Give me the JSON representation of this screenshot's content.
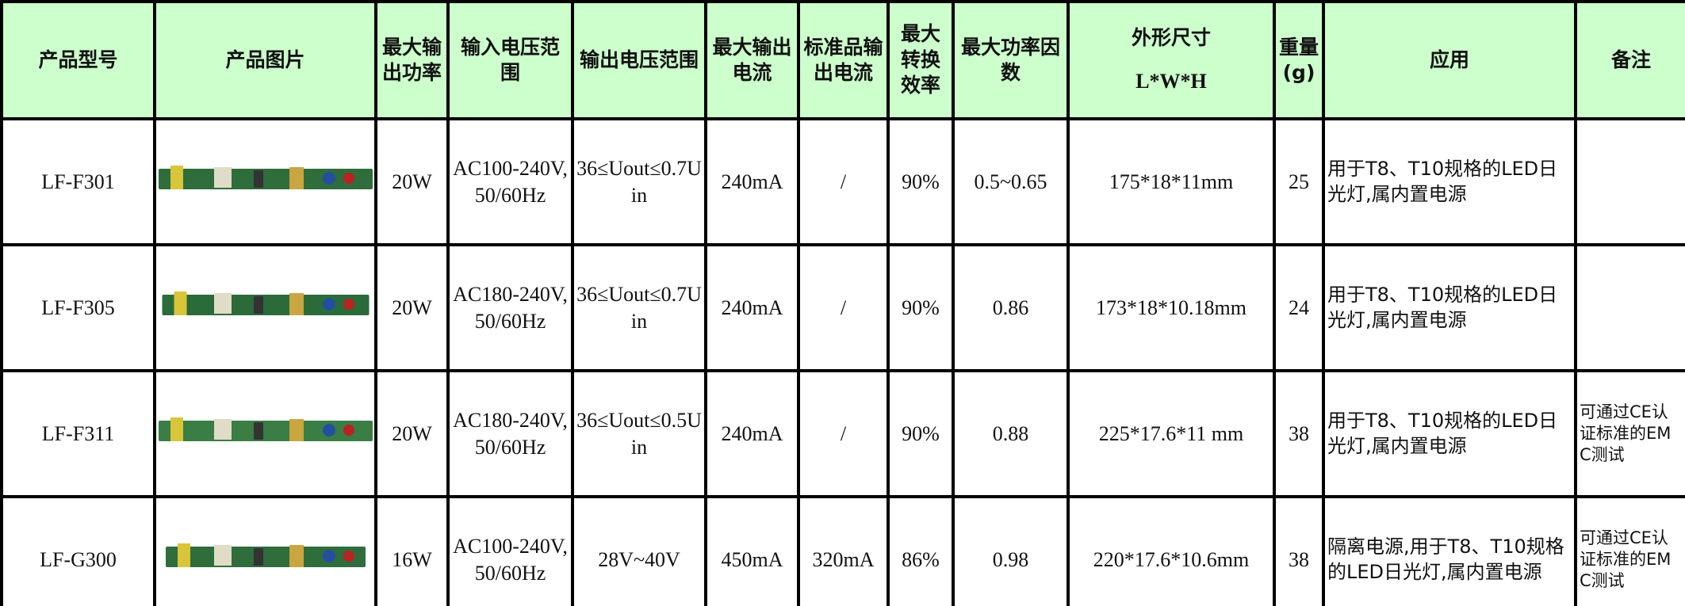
{
  "table": {
    "header": [
      "产品型号",
      "产品图片",
      "最大输出功率",
      "输入电压范围",
      "输出电压范围",
      "最大输出电流",
      "标准品输出电流",
      "最大转换效率",
      "最大功率因数",
      {
        "text": "外形尺寸",
        "sub": "L*W*H"
      },
      "重量(g)",
      "应用",
      "备注"
    ],
    "rows": [
      {
        "model": "LF-F301",
        "power": "20W",
        "input": "AC100-240V,50/60Hz",
        "output": "36≤Uout≤0.7Uin",
        "current": "240mA",
        "standard": "/",
        "efficiency": "90%",
        "pf": "0.5~0.65",
        "size": "175*18*11mm",
        "weight": "25",
        "application": "用于T8、T10规格的LED日光灯,属内置电源"
      },
      {
        "model": "LF-F305",
        "power": "20W",
        "input": "AC180-240V,50/60Hz",
        "output": "36≤Uout≤0.7Uin",
        "current": "240mA",
        "standard": "/",
        "efficiency": "90%",
        "pf": "0.86",
        "size": "173*18*10.18mm",
        "weight": "24",
        "application": "用于T8、T10规格的LED日光灯,属内置电源"
      },
      {
        "model": "LF-F311",
        "power": "20W",
        "input": "AC180-240V,50/60Hz",
        "output": "36≤Uout≤0.5Uin",
        "current": "240mA",
        "standard": "/",
        "efficiency": "90%",
        "pf": "0.88",
        "size": "225*17.6*11 mm",
        "weight": "38",
        "application": "用于T8、T10规格的LED日光灯,属内置电源",
        "note": "可通过CE认证标准的EMC测试"
      },
      {
        "model": "LF-G300",
        "power": "16W",
        "input": "AC100-240V,50/60Hz",
        "output": "28V~40V",
        "current": "450mA",
        "standard": "320mA",
        "efficiency": "86%",
        "pf": "0.98",
        "size": "220*17.6*10.6mm",
        "weight": "38",
        "application": "隔离电源,用于T8、T10规格的LED日光灯,属内置电源",
        "note": "可通过CE认证标准的EMC测试"
      }
    ]
  }
}
